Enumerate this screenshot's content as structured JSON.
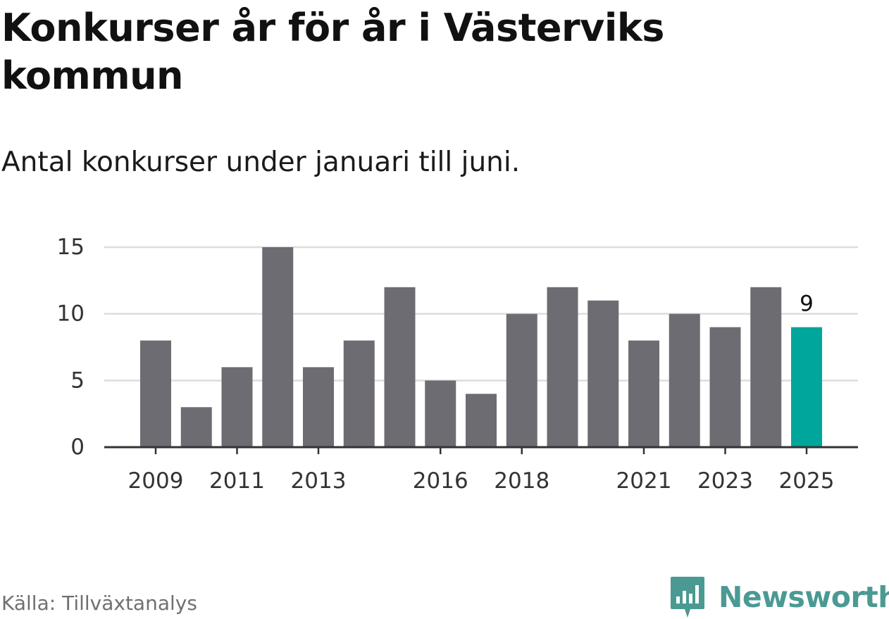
{
  "title": "Konkurser år för år i Västerviks kommun",
  "subtitle": "Antal konkurser under januari till juni.",
  "source": "Källa: Tillväxtanalys",
  "brand": {
    "name": "Newsworthy",
    "icon": "newsworthy-logo-icon"
  },
  "colors": {
    "bar": "#6d6c72",
    "highlight": "#00a59b",
    "grid": "#dddddd",
    "axis": "#333333"
  },
  "chart_data": {
    "type": "bar",
    "categories": [
      "2009",
      "2010",
      "2011",
      "2012",
      "2013",
      "2014",
      "2015",
      "2016",
      "2017",
      "2018",
      "2019",
      "2020",
      "2021",
      "2022",
      "2023",
      "2024",
      "2025"
    ],
    "values": [
      8,
      3,
      6,
      15,
      6,
      8,
      12,
      5,
      4,
      10,
      12,
      11,
      8,
      10,
      9,
      12,
      9
    ],
    "x_tick_labels": [
      "2009",
      "2011",
      "2013",
      "2016",
      "2018",
      "2021",
      "2023",
      "2025"
    ],
    "y_ticks": [
      "0",
      "5",
      "10",
      "15"
    ],
    "ylim": [
      0,
      15
    ],
    "highlight_category": "2025",
    "data_labels": [
      {
        "category": "2025",
        "text": "9"
      }
    ],
    "grid": true,
    "xlabel": "",
    "ylabel": ""
  }
}
